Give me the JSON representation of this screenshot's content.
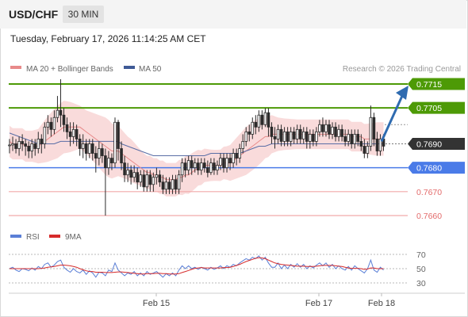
{
  "header": {
    "pair": "USD/CHF",
    "timeframe": "30 MIN"
  },
  "datetime": "Tuesday, February 17, 2026 11:14:25 AM CET",
  "legend": {
    "ma20_bb": "MA 20 + Bollinger Bands",
    "ma50": "MA 50",
    "credit": "Research © 2026 Trading Central",
    "rsi": "RSI",
    "ma9": "9MA"
  },
  "colors": {
    "green": "#4d9a06",
    "blue": "#4a7be8",
    "red": "#e36b6b",
    "candle": "#2b2b2b",
    "band": "#f7cfcf",
    "ma20": "#e88a8a",
    "ma50": "#5a6ea6",
    "arrow": "#2f6bb0",
    "rsi": "#5b7fd6",
    "ma9": "#d62b2b"
  },
  "levels": [
    {
      "label": "0.7715",
      "value": 0.7715,
      "kind": "resistance",
      "tag_style": "filled-green"
    },
    {
      "label": "0.7705",
      "value": 0.7705,
      "kind": "resistance",
      "tag_style": "filled-green"
    },
    {
      "label": "0.7690",
      "value": 0.769,
      "kind": "last-price",
      "tag_style": "filled-dark"
    },
    {
      "label": "0.7680",
      "value": 0.768,
      "kind": "pivot",
      "tag_style": "filled-blue"
    },
    {
      "label": "0.7670",
      "value": 0.767,
      "kind": "support",
      "tag_style": "text-red"
    },
    {
      "label": "0.7660",
      "value": 0.766,
      "kind": "support",
      "tag_style": "text-red"
    }
  ],
  "rsi_axis": {
    "ticks": [
      "70",
      "50",
      "30"
    ],
    "values": [
      70,
      50,
      30
    ]
  },
  "x_labels": [
    "Feb 15",
    "Feb 17",
    "Feb 18"
  ],
  "candles": [
    [
      0.76895,
      0.76895,
      0.7686,
      0.7692
    ],
    [
      0.76895,
      0.769,
      0.7687,
      0.7693
    ],
    [
      0.769,
      0.7688,
      0.7686,
      0.7692
    ],
    [
      0.7688,
      0.7691,
      0.7685,
      0.7693
    ],
    [
      0.7691,
      0.769,
      0.7687,
      0.7694
    ],
    [
      0.769,
      0.7689,
      0.7685,
      0.7692
    ],
    [
      0.7689,
      0.7687,
      0.7684,
      0.7691
    ],
    [
      0.7687,
      0.769,
      0.7684,
      0.7692
    ],
    [
      0.769,
      0.7688,
      0.7685,
      0.7692
    ],
    [
      0.7688,
      0.7692,
      0.7686,
      0.7695
    ],
    [
      0.7692,
      0.769,
      0.7686,
      0.7694
    ],
    [
      0.769,
      0.7697,
      0.7688,
      0.7699
    ],
    [
      0.7697,
      0.7699,
      0.7694,
      0.7702
    ],
    [
      0.7699,
      0.7696,
      0.7693,
      0.7701
    ],
    [
      0.7696,
      0.7701,
      0.7694,
      0.7704
    ],
    [
      0.7701,
      0.7704,
      0.7699,
      0.771
    ],
    [
      0.7704,
      0.7702,
      0.7697,
      0.7717
    ],
    [
      0.7702,
      0.7698,
      0.7695,
      0.7705
    ],
    [
      0.7698,
      0.7695,
      0.7692,
      0.7701
    ],
    [
      0.7695,
      0.7693,
      0.7689,
      0.7699
    ],
    [
      0.7693,
      0.7696,
      0.769,
      0.7699
    ],
    [
      0.7696,
      0.7692,
      0.7689,
      0.7698
    ],
    [
      0.7692,
      0.7688,
      0.7685,
      0.7694
    ],
    [
      0.7688,
      0.769,
      0.7684,
      0.7694
    ],
    [
      0.769,
      0.7686,
      0.7683,
      0.7692
    ],
    [
      0.7686,
      0.769,
      0.7684,
      0.7692
    ],
    [
      0.769,
      0.7686,
      0.7683,
      0.7692
    ],
    [
      0.7686,
      0.7684,
      0.7678,
      0.7689
    ],
    [
      0.7684,
      0.7688,
      0.7681,
      0.7691
    ],
    [
      0.7688,
      0.7685,
      0.7682,
      0.769
    ],
    [
      0.7685,
      0.768,
      0.766,
      0.7688
    ],
    [
      0.768,
      0.7684,
      0.7677,
      0.7687
    ],
    [
      0.7684,
      0.7682,
      0.7679,
      0.7686
    ],
    [
      0.7682,
      0.7699,
      0.768,
      0.7701
    ],
    [
      0.7699,
      0.7688,
      0.7683,
      0.77
    ],
    [
      0.7688,
      0.7682,
      0.7679,
      0.7691
    ],
    [
      0.7682,
      0.7677,
      0.7674,
      0.7685
    ],
    [
      0.7677,
      0.7679,
      0.7674,
      0.7682
    ],
    [
      0.7679,
      0.7676,
      0.7673,
      0.7681
    ],
    [
      0.7676,
      0.7678,
      0.7674,
      0.7681
    ],
    [
      0.7678,
      0.7674,
      0.7671,
      0.768
    ],
    [
      0.7674,
      0.7677,
      0.7672,
      0.7679
    ],
    [
      0.7677,
      0.7672,
      0.767,
      0.7679
    ],
    [
      0.7672,
      0.7677,
      0.767,
      0.7679
    ],
    [
      0.7677,
      0.7673,
      0.767,
      0.7679
    ],
    [
      0.7673,
      0.7676,
      0.767,
      0.7678
    ],
    [
      0.7676,
      0.7677,
      0.7673,
      0.768
    ],
    [
      0.7677,
      0.7674,
      0.7672,
      0.7679
    ],
    [
      0.7674,
      0.7671,
      0.7669,
      0.7677
    ],
    [
      0.7671,
      0.7674,
      0.7669,
      0.7676
    ],
    [
      0.7674,
      0.7671,
      0.7669,
      0.7676
    ],
    [
      0.7671,
      0.7675,
      0.7669,
      0.7677
    ],
    [
      0.7675,
      0.7671,
      0.7669,
      0.7677
    ],
    [
      0.7671,
      0.7677,
      0.7669,
      0.7679
    ],
    [
      0.7677,
      0.7682,
      0.7674,
      0.7684
    ],
    [
      0.7682,
      0.7679,
      0.7676,
      0.7684
    ],
    [
      0.7679,
      0.7683,
      0.7677,
      0.7685
    ],
    [
      0.7683,
      0.768,
      0.7677,
      0.7685
    ],
    [
      0.768,
      0.7682,
      0.7678,
      0.7684
    ],
    [
      0.7682,
      0.7679,
      0.7677,
      0.7684
    ],
    [
      0.7679,
      0.7682,
      0.7677,
      0.7684
    ],
    [
      0.7682,
      0.768,
      0.7678,
      0.7684
    ],
    [
      0.768,
      0.7678,
      0.7676,
      0.7683
    ],
    [
      0.7678,
      0.7682,
      0.7677,
      0.7684
    ],
    [
      0.7682,
      0.7679,
      0.7677,
      0.7684
    ],
    [
      0.7679,
      0.7681,
      0.7677,
      0.7683
    ],
    [
      0.7681,
      0.7684,
      0.7679,
      0.7686
    ],
    [
      0.7684,
      0.768,
      0.7678,
      0.7686
    ],
    [
      0.768,
      0.7684,
      0.7678,
      0.7686
    ],
    [
      0.7684,
      0.7682,
      0.7679,
      0.7686
    ],
    [
      0.7682,
      0.7686,
      0.768,
      0.7688
    ],
    [
      0.7686,
      0.7684,
      0.7681,
      0.7688
    ],
    [
      0.7684,
      0.7688,
      0.7682,
      0.769
    ],
    [
      0.7688,
      0.7691,
      0.7686,
      0.7694
    ],
    [
      0.7691,
      0.7695,
      0.7689,
      0.7697
    ],
    [
      0.7695,
      0.7694,
      0.7691,
      0.7698
    ],
    [
      0.7694,
      0.7699,
      0.7692,
      0.7701
    ],
    [
      0.7699,
      0.7697,
      0.7694,
      0.7702
    ],
    [
      0.7697,
      0.7702,
      0.7695,
      0.7704
    ],
    [
      0.7702,
      0.7698,
      0.7696,
      0.7704
    ],
    [
      0.7698,
      0.7703,
      0.7697,
      0.7705
    ],
    [
      0.7703,
      0.7697,
      0.7693,
      0.7705
    ],
    [
      0.7697,
      0.7693,
      0.769,
      0.7699
    ],
    [
      0.7693,
      0.7692,
      0.7688,
      0.7697
    ],
    [
      0.7692,
      0.7696,
      0.769,
      0.7698
    ],
    [
      0.7696,
      0.7691,
      0.7689,
      0.7698
    ],
    [
      0.7691,
      0.7695,
      0.7689,
      0.7697
    ],
    [
      0.7695,
      0.7691,
      0.7689,
      0.7697
    ],
    [
      0.7691,
      0.7695,
      0.7689,
      0.7697
    ],
    [
      0.7695,
      0.7692,
      0.769,
      0.7697
    ],
    [
      0.7692,
      0.7696,
      0.769,
      0.7698
    ],
    [
      0.7696,
      0.7692,
      0.769,
      0.7698
    ],
    [
      0.7692,
      0.7695,
      0.769,
      0.7697
    ],
    [
      0.7695,
      0.7691,
      0.7688,
      0.7697
    ],
    [
      0.7691,
      0.7694,
      0.7688,
      0.7696
    ],
    [
      0.7694,
      0.7691,
      0.7689,
      0.7696
    ],
    [
      0.7691,
      0.7695,
      0.7689,
      0.7697
    ],
    [
      0.7695,
      0.7698,
      0.7693,
      0.77
    ],
    [
      0.7698,
      0.7695,
      0.7693,
      0.7701
    ],
    [
      0.7695,
      0.7698,
      0.7693,
      0.77
    ],
    [
      0.7698,
      0.7694,
      0.7692,
      0.77
    ],
    [
      0.7694,
      0.7697,
      0.7692,
      0.7699
    ],
    [
      0.7697,
      0.7693,
      0.7691,
      0.7699
    ],
    [
      0.7693,
      0.7696,
      0.7691,
      0.7698
    ],
    [
      0.7696,
      0.7693,
      0.7691,
      0.7698
    ],
    [
      0.7693,
      0.7691,
      0.7689,
      0.7696
    ],
    [
      0.7691,
      0.7694,
      0.7689,
      0.7696
    ],
    [
      0.7694,
      0.769,
      0.7688,
      0.7696
    ],
    [
      0.769,
      0.7694,
      0.7688,
      0.7696
    ],
    [
      0.7694,
      0.7691,
      0.7689,
      0.7696
    ],
    [
      0.7691,
      0.7689,
      0.7687,
      0.7694
    ],
    [
      0.7689,
      0.7686,
      0.7684,
      0.7692
    ],
    [
      0.7686,
      0.7689,
      0.7684,
      0.7691
    ],
    [
      0.7689,
      0.7701,
      0.7687,
      0.7706
    ],
    [
      0.7701,
      0.7692,
      0.7689,
      0.7703
    ],
    [
      0.7692,
      0.7687,
      0.7685,
      0.7695
    ],
    [
      0.7687,
      0.7692,
      0.7685,
      0.7694
    ],
    [
      0.7692,
      0.7689,
      0.7687,
      0.7694
    ]
  ],
  "ma20": [
    0.7691,
    0.769,
    0.769,
    0.769,
    0.769,
    0.7689,
    0.7689,
    0.7689,
    0.7689,
    0.7689,
    0.769,
    0.7691,
    0.7692,
    0.7693,
    0.7694,
    0.7695,
    0.7696,
    0.7697,
    0.7697,
    0.7697,
    0.7697,
    0.7697,
    0.7697,
    0.7696,
    0.7695,
    0.7694,
    0.7693,
    0.7692,
    0.7691,
    0.769,
    0.7689,
    0.7688,
    0.7687,
    0.7687,
    0.7687,
    0.7686,
    0.7685,
    0.7684,
    0.7683,
    0.7682,
    0.7681,
    0.768,
    0.7679,
    0.7678,
    0.7678,
    0.7677,
    0.7677,
    0.7676,
    0.7676,
    0.7675,
    0.7675,
    0.7675,
    0.7675,
    0.7676,
    0.7676,
    0.7677,
    0.7677,
    0.7678,
    0.7679,
    0.768,
    0.768,
    0.7681,
    0.7681,
    0.7681,
    0.7681,
    0.7681,
    0.7681,
    0.7682,
    0.7682,
    0.7682,
    0.7683,
    0.7684,
    0.7685,
    0.7686,
    0.7687,
    0.7688,
    0.7689,
    0.769,
    0.7691,
    0.7692,
    0.7693,
    0.7693,
    0.7694,
    0.7694,
    0.7694,
    0.7694,
    0.7694,
    0.7694,
    0.7694,
    0.7694,
    0.7694,
    0.7694,
    0.7694,
    0.7694,
    0.7694,
    0.7694,
    0.7694,
    0.7694,
    0.7694,
    0.7694,
    0.7694,
    0.7694,
    0.7694,
    0.7694,
    0.7694,
    0.7694,
    0.7694,
    0.7693,
    0.7693,
    0.7693,
    0.7693,
    0.7692,
    0.7692,
    0.7692,
    0.7692,
    0.7692,
    0.7692,
    0.7692
  ],
  "band_width": [
    0.00065,
    0.00065,
    0.00065,
    0.00065,
    0.00065,
    0.00065,
    0.00065,
    0.00065,
    0.00068,
    0.00072,
    0.0008,
    0.00088,
    0.00095,
    0.001,
    0.00105,
    0.0011,
    0.0011,
    0.0011,
    0.00108,
    0.00105,
    0.001,
    0.00095,
    0.0009,
    0.0009,
    0.0009,
    0.00095,
    0.001,
    0.00105,
    0.0011,
    0.00115,
    0.0012,
    0.0012,
    0.00115,
    0.0011,
    0.00105,
    0.001,
    0.00095,
    0.0009,
    0.0009,
    0.00085,
    0.0008,
    0.00075,
    0.0007,
    0.0007,
    0.0007,
    0.0007,
    0.0007,
    0.0007,
    0.0007,
    0.0007,
    0.0007,
    0.0007,
    0.0007,
    0.00072,
    0.00075,
    0.00078,
    0.0008,
    0.0008,
    0.00078,
    0.00075,
    0.00072,
    0.0007,
    0.00068,
    0.00066,
    0.00065,
    0.00065,
    0.00066,
    0.00068,
    0.0007,
    0.00075,
    0.0008,
    0.00085,
    0.0009,
    0.00095,
    0.001,
    0.001,
    0.001,
    0.001,
    0.00098,
    0.00095,
    0.0009,
    0.00085,
    0.0008,
    0.00075,
    0.0007,
    0.00068,
    0.00066,
    0.00065,
    0.00064,
    0.00063,
    0.00062,
    0.00062,
    0.00062,
    0.00062,
    0.00062,
    0.00062,
    0.00062,
    0.00062,
    0.00062,
    0.00062,
    0.00062,
    0.00062,
    0.00062,
    0.00062,
    0.00062,
    0.00062,
    0.00062,
    0.00062,
    0.00062,
    0.00062,
    0.00062,
    0.00063,
    0.00064,
    0.00066,
    0.00068,
    0.0007,
    0.0007,
    0.0007
  ],
  "ma50": [
    0.76945,
    0.7694,
    0.76935,
    0.7693,
    0.76925,
    0.7692,
    0.76915,
    0.7691,
    0.76905,
    0.769,
    0.769,
    0.769,
    0.769,
    0.769,
    0.769,
    0.76905,
    0.7691,
    0.7691,
    0.7691,
    0.7691,
    0.7691,
    0.7691,
    0.7691,
    0.7691,
    0.7691,
    0.7691,
    0.7691,
    0.7691,
    0.7691,
    0.7691,
    0.7691,
    0.7691,
    0.7691,
    0.7691,
    0.7691,
    0.769,
    0.76895,
    0.7689,
    0.76885,
    0.7688,
    0.76875,
    0.7687,
    0.76865,
    0.7686,
    0.76855,
    0.7685,
    0.7685,
    0.7685,
    0.7685,
    0.7685,
    0.7685,
    0.7685,
    0.7685,
    0.7685,
    0.7685,
    0.7685,
    0.7685,
    0.7685,
    0.7685,
    0.7685,
    0.7685,
    0.7685,
    0.76855,
    0.7686,
    0.7686,
    0.7686,
    0.7686,
    0.7686,
    0.7686,
    0.7686,
    0.7686,
    0.7686,
    0.7686,
    0.76865,
    0.7687,
    0.76875,
    0.7688,
    0.76885,
    0.7689,
    0.7689,
    0.7689,
    0.76895,
    0.769,
    0.769,
    0.769,
    0.769,
    0.769,
    0.769,
    0.769,
    0.769,
    0.769,
    0.769,
    0.769,
    0.769,
    0.769,
    0.769,
    0.769,
    0.769,
    0.769,
    0.769,
    0.769,
    0.769,
    0.769,
    0.769,
    0.769,
    0.769,
    0.769,
    0.769,
    0.769,
    0.769,
    0.769,
    0.769,
    0.769,
    0.769,
    0.769,
    0.769,
    0.769,
    0.769
  ],
  "rsi": [
    50,
    52,
    48,
    46,
    50,
    49,
    47,
    51,
    48,
    53,
    50,
    56,
    58,
    52,
    55,
    60,
    62,
    52,
    48,
    45,
    50,
    46,
    44,
    48,
    42,
    47,
    44,
    38,
    45,
    44,
    40,
    48,
    46,
    58,
    48,
    44,
    40,
    44,
    42,
    46,
    40,
    44,
    40,
    46,
    42,
    44,
    46,
    42,
    38,
    43,
    40,
    44,
    40,
    48,
    54,
    50,
    54,
    50,
    52,
    49,
    52,
    50,
    48,
    52,
    49,
    51,
    54,
    50,
    54,
    52,
    56,
    54,
    58,
    61,
    64,
    62,
    66,
    64,
    68,
    62,
    66,
    58,
    52,
    52,
    58,
    50,
    55,
    50,
    56,
    52,
    57,
    52,
    56,
    50,
    54,
    51,
    55,
    58,
    54,
    58,
    52,
    56,
    50,
    54,
    50,
    48,
    53,
    48,
    54,
    50,
    47,
    44,
    50,
    62,
    48,
    45,
    52,
    48
  ],
  "rsi_ma9": [
    50,
    50,
    50,
    50,
    50,
    50,
    50,
    50,
    50,
    50,
    50.5,
    51,
    52,
    52.5,
    53,
    54,
    55,
    55,
    54.5,
    54,
    53,
    52,
    50,
    48.5,
    47,
    46,
    46,
    45,
    45,
    45,
    44.5,
    44.5,
    44.5,
    45,
    45.5,
    45.5,
    45,
    44.5,
    44,
    43.5,
    43,
    42.5,
    42.5,
    43,
    43,
    43,
    43.5,
    43.5,
    43,
    43,
    42.5,
    42.5,
    42.5,
    43,
    44.5,
    46,
    47.5,
    49,
    50.5,
    51,
    51.5,
    51,
    51,
    51,
    51,
    51,
    51,
    51.5,
    51.5,
    52,
    53,
    54.5,
    56,
    58,
    60,
    61.5,
    63,
    64.5,
    65.5,
    65,
    64,
    62,
    60,
    58,
    57,
    56,
    55.5,
    55,
    54.5,
    54,
    53.5,
    53.5,
    53.5,
    53,
    53,
    53,
    53.5,
    54,
    54.5,
    54.5,
    54.5,
    54.5,
    54,
    53.5,
    53,
    52,
    51,
    50.5,
    50.5,
    50.5,
    50,
    49,
    49.5,
    51,
    51,
    50,
    50,
    50
  ]
}
